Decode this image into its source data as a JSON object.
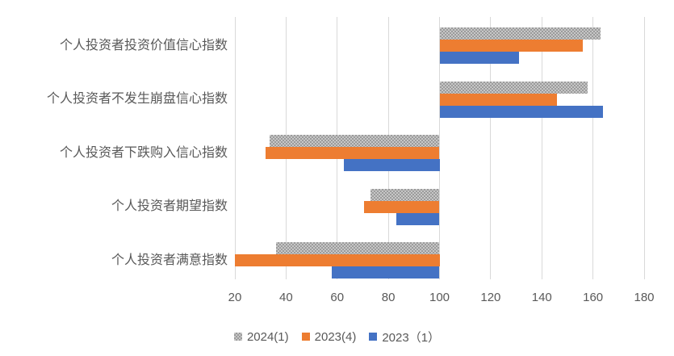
{
  "chart_data": {
    "type": "bar",
    "orientation": "horizontal",
    "title": "",
    "xlabel": "",
    "ylabel": "",
    "categories": [
      "个人投资者投资价值信心指数",
      "个人投资者不发生崩盘信心指数",
      "个人投资者下跌购入信心指数",
      "个人投资者期望指数",
      "个人投资者满意指数"
    ],
    "series": [
      {
        "name": "2024(1)",
        "color": "#A6A6A6",
        "pattern": "dotted-gray",
        "values": [
          163,
          158,
          33.5,
          73,
          36
        ]
      },
      {
        "name": "2023(4)",
        "color": "#ED7D31",
        "pattern": null,
        "values": [
          156,
          146,
          32,
          70.5,
          20
        ]
      },
      {
        "name": "2023（1）",
        "color": "#4472C4",
        "pattern": null,
        "values": [
          131,
          164,
          62.5,
          83,
          58
        ]
      }
    ],
    "axis": {
      "min": 20,
      "max": 180,
      "step": 20,
      "bar_base": 100
    },
    "x_ticks": [
      "20",
      "40",
      "60",
      "80",
      "100",
      "120",
      "140",
      "160",
      "180"
    ],
    "grid": true,
    "legend_position": "bottom",
    "colors": {
      "gridline": "#D9D9D9",
      "text": "#595959",
      "background": "#FFFFFF"
    }
  }
}
